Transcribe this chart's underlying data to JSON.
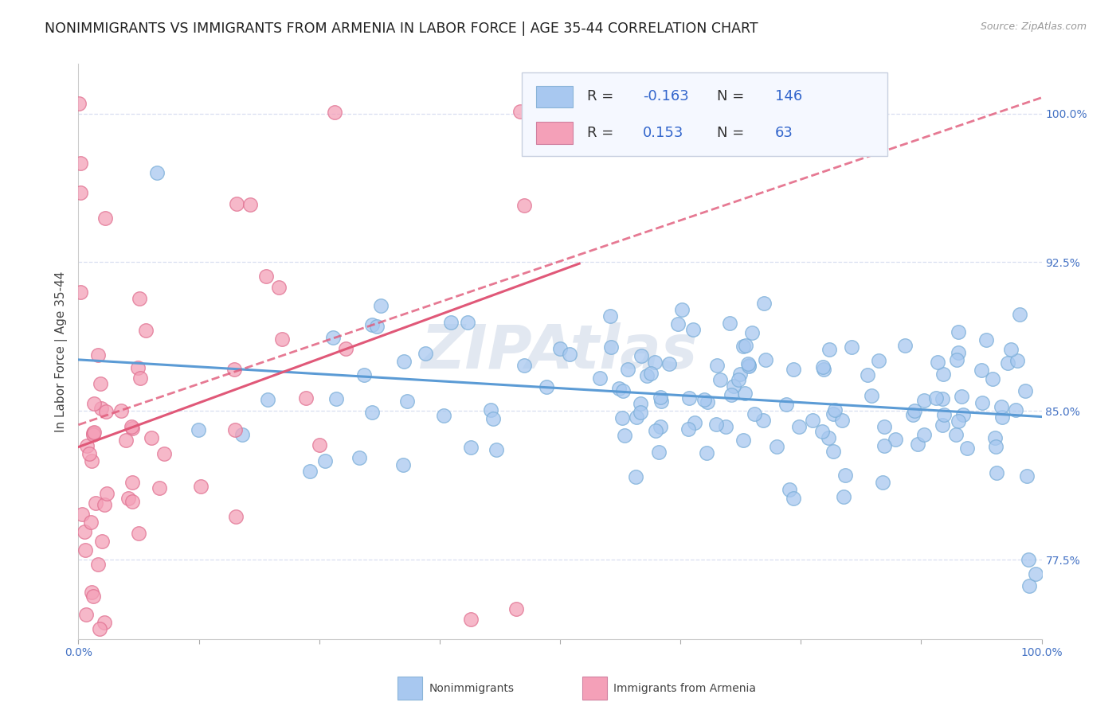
{
  "title": "NONIMMIGRANTS VS IMMIGRANTS FROM ARMENIA IN LABOR FORCE | AGE 35-44 CORRELATION CHART",
  "source": "Source: ZipAtlas.com",
  "ylabel": "In Labor Force | Age 35-44",
  "nonimmigrant_R": -0.163,
  "nonimmigrant_N": 146,
  "immigrant_R": 0.153,
  "immigrant_N": 63,
  "nonimmigrant_color": "#a8c8f0",
  "nonimmigrant_edge_color": "#7aaed8",
  "immigrant_color": "#f4a0b8",
  "immigrant_edge_color": "#e07090",
  "nonimmigrant_line_color": "#5b9bd5",
  "immigrant_line_color": "#e05878",
  "watermark": "ZIPAtlas",
  "xlim": [
    0.0,
    1.0
  ],
  "ylim": [
    0.735,
    1.025
  ],
  "ytick_positions": [
    0.775,
    0.85,
    0.925,
    1.0
  ],
  "ytick_labels": [
    "77.5%",
    "85.0%",
    "92.5%",
    "100.0%"
  ],
  "xtick_positions": [
    0.0,
    0.125,
    0.25,
    0.375,
    0.5,
    0.625,
    0.75,
    0.875,
    1.0
  ],
  "xtick_labels": [
    "0.0%",
    "",
    "",
    "",
    "",
    "",
    "",
    "",
    "100.0%"
  ],
  "background_color": "#ffffff",
  "grid_color": "#d8dff0",
  "title_fontsize": 12.5,
  "axis_label_fontsize": 11,
  "tick_fontsize": 10,
  "legend_fontsize": 13,
  "ytick_color": "#4472c4",
  "xtick_color": "#4472c4"
}
